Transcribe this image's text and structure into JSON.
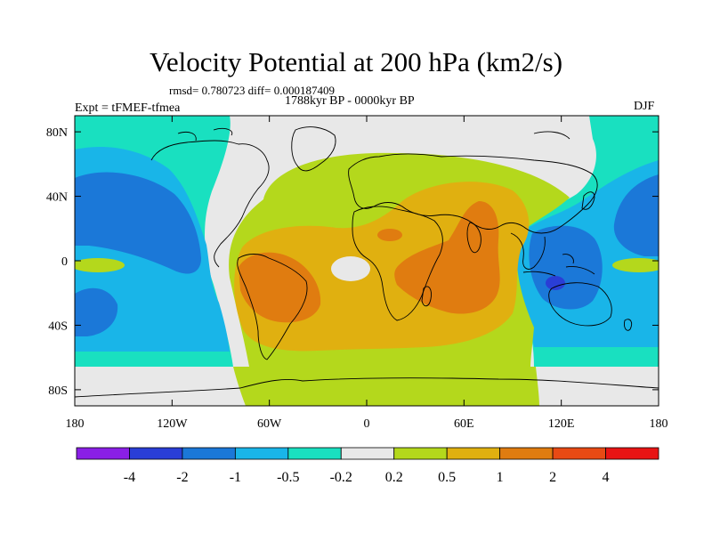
{
  "chart_data": {
    "type": "heatmap",
    "title": "Velocity Potential at 200 hPa (km2/s)",
    "stats": "rmsd= 0.780723  diff= 0.000187409",
    "subtitle": "1788kyr BP - 0000kyr BP",
    "left_label": "Expt = tFMEF-tfmea",
    "right_label": "DJF",
    "x_axis": {
      "range": [
        -180,
        180
      ],
      "ticks": [
        {
          "value": -180,
          "label": "180"
        },
        {
          "value": -120,
          "label": "120W"
        },
        {
          "value": -60,
          "label": "60W"
        },
        {
          "value": 0,
          "label": "0"
        },
        {
          "value": 60,
          "label": "60E"
        },
        {
          "value": 120,
          "label": "120E"
        },
        {
          "value": 180,
          "label": "180"
        }
      ]
    },
    "y_axis": {
      "range": [
        -90,
        90
      ],
      "ticks": [
        {
          "value": 80,
          "label": "80N"
        },
        {
          "value": 40,
          "label": "40N"
        },
        {
          "value": 0,
          "label": "0"
        },
        {
          "value": -40,
          "label": "40S"
        },
        {
          "value": -80,
          "label": "80S"
        }
      ]
    },
    "colorbar": {
      "levels": [
        "-4",
        "-2",
        "-1",
        "-0.5",
        "-0.2",
        "0.2",
        "0.5",
        "1",
        "2",
        "4"
      ],
      "colors": [
        "#8a1fe6",
        "#2a3ed6",
        "#1b78d8",
        "#19b5e8",
        "#19e0c0",
        "#e8e8e8",
        "#b4d81c",
        "#e0b010",
        "#e07c10",
        "#e84a14",
        "#e81414"
      ]
    },
    "regions": [
      {
        "level": "0.2..0.5",
        "desc": "broad positive anomaly over Atlantic, Americas, Africa, Indian Ocean and Southern Ocean"
      },
      {
        "level": "0.5..1",
        "desc": "South America, tropical Atlantic and Africa"
      },
      {
        "level": "1..2",
        "desc": "central South America and eastern Africa / western Indian Ocean"
      },
      {
        "level": "-0.5..-0.2",
        "desc": "North and South Pacific"
      },
      {
        "level": "-1..-0.5",
        "desc": "tropical Pacific and Maritime Continent"
      },
      {
        "level": "-2..-1",
        "desc": "central Pacific lobes and Indonesia"
      },
      {
        "level": "-4..-2",
        "desc": "small core near Timor / northwest Australia"
      }
    ]
  }
}
